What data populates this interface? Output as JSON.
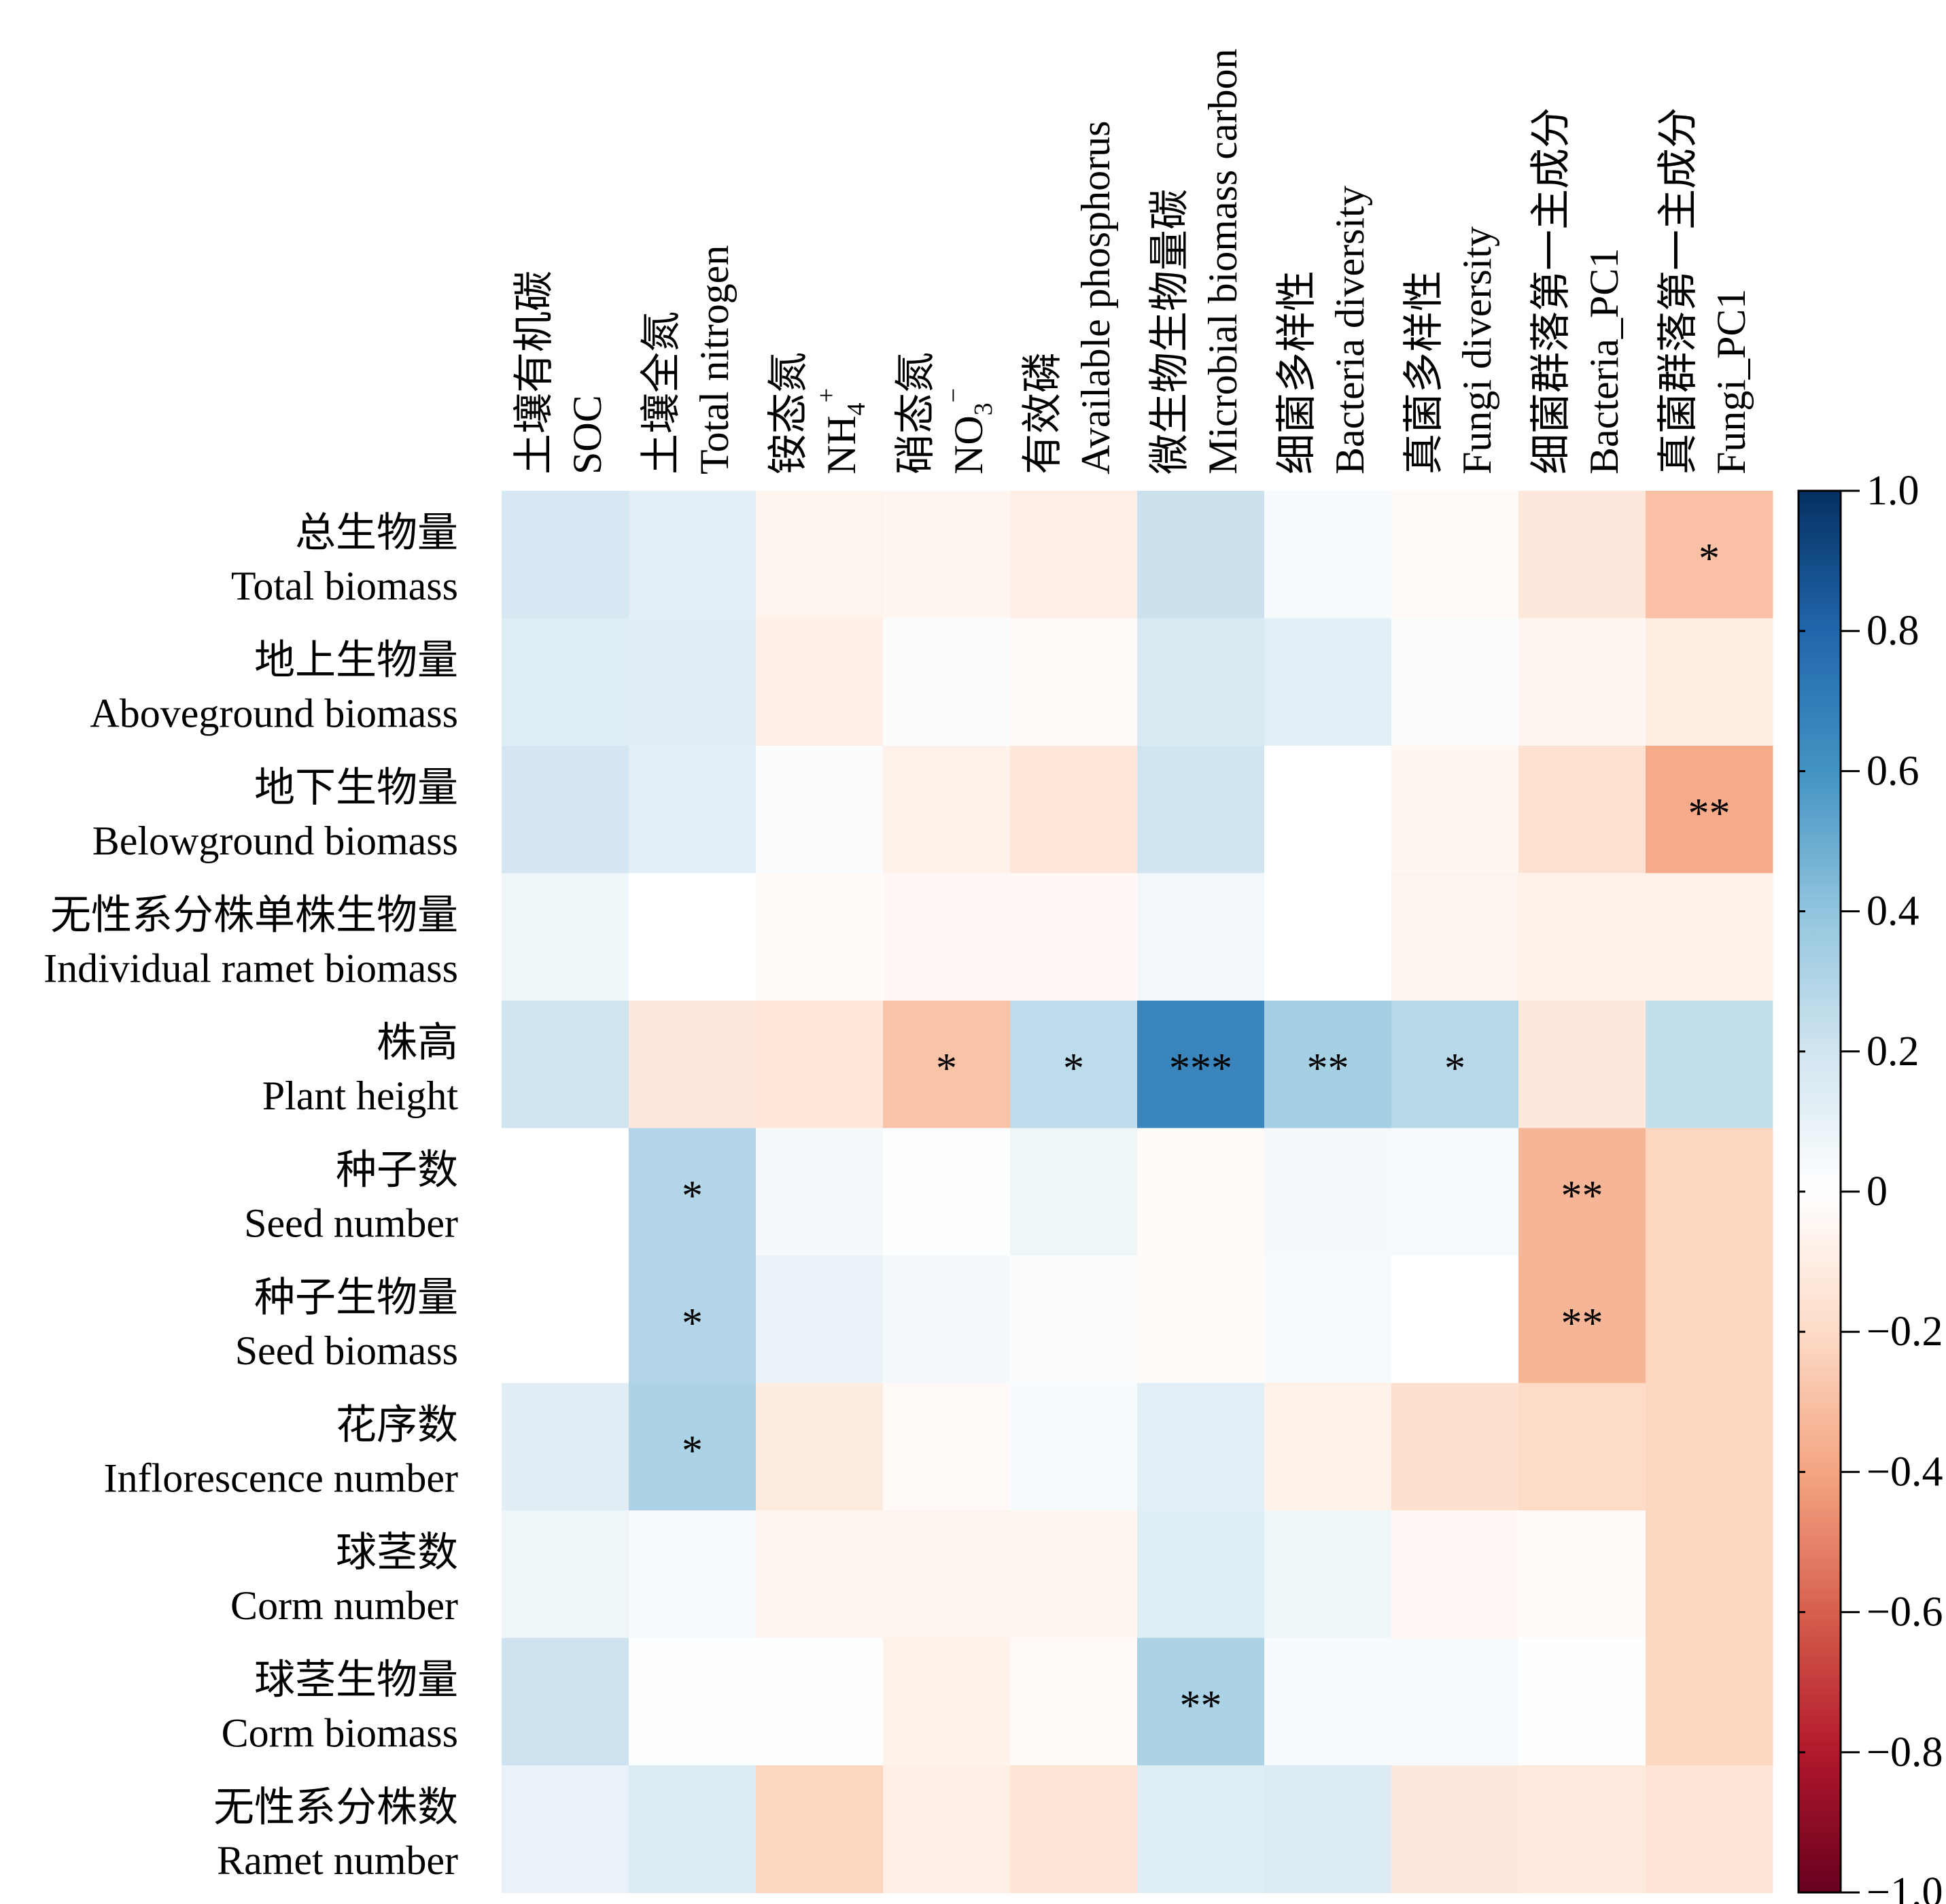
{
  "chart_data": {
    "type": "heatmap",
    "columns": [
      {
        "zh": "土壤有机碳",
        "en": "SOC"
      },
      {
        "zh": "土壤全氮",
        "en": "Total nitrogen"
      },
      {
        "zh": "铵态氮",
        "en": "NH",
        "sub": "4",
        "sup": "+"
      },
      {
        "zh": "硝态氮",
        "en": "NO",
        "sub": "3",
        "sup": "−"
      },
      {
        "zh": "有效磷",
        "en": "Available phosphorus"
      },
      {
        "zh": "微生物生物量碳",
        "en": "Microbial biomass carbon"
      },
      {
        "zh": "细菌多样性",
        "en": "Bacteria diversity"
      },
      {
        "zh": "真菌多样性",
        "en": "Fungi diversity"
      },
      {
        "zh": "细菌群落第一主成分",
        "en": "Bacteria_PC1"
      },
      {
        "zh": "真菌群落第一主成分",
        "en": "Fungi_PC1"
      }
    ],
    "rows": [
      {
        "zh": "总生物量",
        "en": "Total biomass"
      },
      {
        "zh": "地上生物量",
        "en": "Aboveground biomass"
      },
      {
        "zh": "地下生物量",
        "en": "Belowground biomass"
      },
      {
        "zh": "无性系分株单株生物量",
        "en": "Individual ramet biomass"
      },
      {
        "zh": "株高",
        "en": "Plant height"
      },
      {
        "zh": "种子数",
        "en": "Seed number"
      },
      {
        "zh": "种子生物量",
        "en": "Seed biomass"
      },
      {
        "zh": "花序数",
        "en": "Inflorescence number"
      },
      {
        "zh": "球茎数",
        "en": "Corm number"
      },
      {
        "zh": "球茎生物量",
        "en": "Corm biomass"
      },
      {
        "zh": "无性系分株数",
        "en": "Ramet number"
      }
    ],
    "values": [
      [
        0.18,
        0.12,
        -0.06,
        -0.05,
        -0.09,
        0.22,
        0.03,
        -0.03,
        -0.13,
        -0.3
      ],
      [
        0.14,
        0.13,
        -0.09,
        0.02,
        -0.03,
        0.16,
        0.12,
        0.02,
        -0.05,
        -0.1
      ],
      [
        0.19,
        0.12,
        0.02,
        -0.07,
        -0.14,
        0.2,
        0.0,
        -0.05,
        -0.16,
        -0.38
      ],
      [
        0.07,
        0.0,
        -0.02,
        -0.04,
        -0.04,
        0.06,
        0.0,
        -0.06,
        -0.08,
        -0.07
      ],
      [
        0.2,
        -0.13,
        -0.14,
        -0.29,
        0.26,
        0.66,
        0.34,
        0.28,
        -0.13,
        0.24
      ],
      [
        0.0,
        0.3,
        0.05,
        0.01,
        0.07,
        -0.02,
        0.05,
        0.04,
        -0.34,
        -0.22
      ],
      [
        0.0,
        0.3,
        0.09,
        0.05,
        0.02,
        -0.02,
        0.04,
        0.0,
        -0.34,
        -0.22
      ],
      [
        0.13,
        0.32,
        -0.11,
        -0.03,
        0.03,
        0.12,
        -0.08,
        -0.17,
        -0.2,
        -0.22
      ],
      [
        0.07,
        0.04,
        -0.06,
        -0.06,
        -0.05,
        0.14,
        0.07,
        -0.04,
        -0.03,
        -0.22
      ],
      [
        0.21,
        0.01,
        0.01,
        -0.07,
        -0.03,
        0.32,
        0.04,
        0.04,
        0.01,
        -0.22
      ],
      [
        0.1,
        0.15,
        -0.22,
        -0.09,
        -0.15,
        0.14,
        0.15,
        -0.13,
        -0.12,
        -0.15
      ]
    ],
    "significance": [
      [
        "",
        "",
        "",
        "",
        "",
        "",
        "",
        "",
        "",
        "*"
      ],
      [
        "",
        "",
        "",
        "",
        "",
        "",
        "",
        "",
        "",
        ""
      ],
      [
        "",
        "",
        "",
        "",
        "",
        "",
        "",
        "",
        "",
        "**"
      ],
      [
        "",
        "",
        "",
        "",
        "",
        "",
        "",
        "",
        "",
        ""
      ],
      [
        "",
        "",
        "",
        "*",
        "*",
        "***",
        "**",
        "*",
        "",
        ""
      ],
      [
        "",
        "*",
        "",
        "",
        "",
        "",
        "",
        "",
        "**",
        ""
      ],
      [
        "",
        "*",
        "",
        "",
        "",
        "",
        "",
        "",
        "**",
        ""
      ],
      [
        "",
        "*",
        "",
        "",
        "",
        "",
        "",
        "",
        "",
        ""
      ],
      [
        "",
        "",
        "",
        "",
        "",
        "",
        "",
        "",
        "",
        ""
      ],
      [
        "",
        "",
        "",
        "",
        "",
        "**",
        "",
        "",
        "",
        ""
      ],
      [
        "",
        "",
        "",
        "",
        "",
        "",
        "",
        "",
        "",
        ""
      ]
    ],
    "colorbar": {
      "min": -1.0,
      "max": 1.0,
      "ticks": [
        "1.0",
        "0.8",
        "0.6",
        "0.4",
        "0.2",
        "0",
        "−0.2",
        "−0.4",
        "−0.6",
        "−0.8",
        "−1.0"
      ],
      "tick_values": [
        1.0,
        0.8,
        0.6,
        0.4,
        0.2,
        0,
        -0.2,
        -0.4,
        -0.6,
        -0.8,
        -1.0
      ],
      "colors": [
        "#67001f",
        "#b2182b",
        "#d6604d",
        "#f4a582",
        "#fddbc7",
        "#ffffff",
        "#d1e5f0",
        "#92c5de",
        "#4393c3",
        "#2166ac",
        "#053061"
      ]
    }
  }
}
